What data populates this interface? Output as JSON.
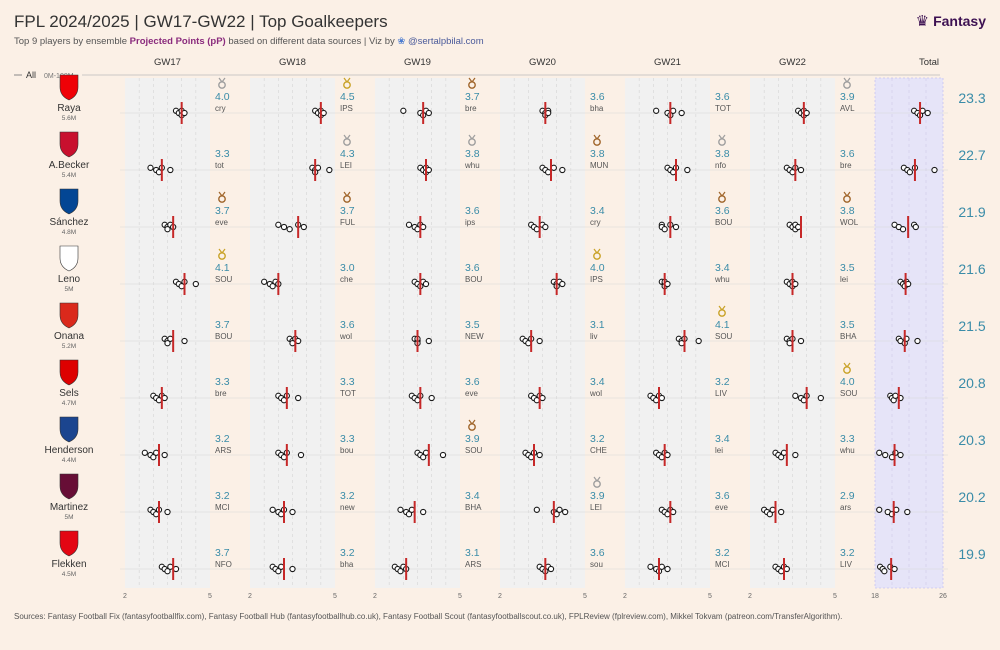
{
  "header": {
    "title": "FPL 2024/2025 | GW17-GW22 | Top Goalkeepers",
    "subtitle_pre": "Top 9 players by ensemble ",
    "subtitle_bold": "Projected Points (pP)",
    "subtitle_mid": " based on different data sources | Viz by ",
    "subtitle_handle": "@sertalpbilal.com",
    "logo_text": "Fantasy"
  },
  "filter": {
    "label": "All",
    "range": "0M-100M"
  },
  "footer": "Sources: Fantasy Football Fix (fantasyfootballfix.com), Fantasy Football Hub (fantasyfootballhub.co.uk), Fantasy Football Scout (fantasyfootballscout.co.uk), FPLReview (fplreview.com), Mikkel Tokvam (patreon.com/TransferAlgorithm).",
  "colors": {
    "background": "#fbf0e6",
    "panel": "#f1f1f1",
    "total_panel": "#e6e4f8",
    "mean_line": "#c62828",
    "value_text": "#3a8ca8",
    "gold": "#c9a227",
    "silver": "#9e9e9e",
    "bronze": "#a0652a"
  },
  "chart_data": {
    "type": "strip",
    "gameweeks": [
      "GW17",
      "GW18",
      "GW19",
      "GW20",
      "GW21",
      "GW22"
    ],
    "total_label": "Total",
    "axis_gw": {
      "min": 2,
      "max": 5,
      "tick_labels": [
        "2",
        "5"
      ]
    },
    "axis_total": {
      "min": 18,
      "max": 26,
      "tick_labels": [
        "18",
        "26"
      ]
    },
    "players": [
      {
        "name": "Raya",
        "price": "5.6M",
        "total": 23.3,
        "total_sources": [
          22.6,
          23.0,
          23.3,
          23.6,
          24.2
        ],
        "gws": [
          {
            "value": 4.0,
            "opp": "cry",
            "medal": "silver",
            "sources": [
              3.8,
              3.9,
              4.0,
              4.0,
              4.1
            ]
          },
          {
            "value": 4.5,
            "opp": "IPS",
            "medal": "gold",
            "sources": [
              4.3,
              4.4,
              4.5,
              4.5,
              4.6
            ]
          },
          {
            "value": 3.7,
            "opp": "bre",
            "medal": "bronze",
            "sources": [
              3.0,
              3.6,
              3.7,
              3.8,
              3.9
            ]
          },
          {
            "value": 3.6,
            "opp": "bha",
            "medal": "",
            "sources": [
              3.5,
              3.6,
              3.6,
              3.7,
              3.7
            ]
          },
          {
            "value": 3.6,
            "opp": "TOT",
            "medal": "",
            "sources": [
              3.1,
              3.5,
              3.6,
              3.7,
              4.0
            ]
          },
          {
            "value": 3.9,
            "opp": "AVL",
            "medal": "silver",
            "sources": [
              3.7,
              3.8,
              3.9,
              3.9,
              4.0
            ]
          }
        ]
      },
      {
        "name": "A.Becker",
        "price": "5.4M",
        "total": 22.7,
        "total_sources": [
          21.4,
          21.8,
          22.1,
          22.7,
          25.0
        ],
        "gws": [
          {
            "value": 3.3,
            "opp": "tot",
            "medal": "",
            "sources": [
              2.9,
              3.1,
              3.2,
              3.3,
              3.6
            ]
          },
          {
            "value": 4.3,
            "opp": "LEI",
            "medal": "silver",
            "sources": [
              4.2,
              4.3,
              4.3,
              4.4,
              4.8
            ]
          },
          {
            "value": 3.8,
            "opp": "whu",
            "medal": "silver",
            "sources": [
              3.6,
              3.7,
              3.8,
              3.8,
              3.9
            ]
          },
          {
            "value": 3.8,
            "opp": "MUN",
            "medal": "bronze",
            "sources": [
              3.5,
              3.6,
              3.7,
              3.9,
              4.2
            ]
          },
          {
            "value": 3.8,
            "opp": "nfo",
            "medal": "silver",
            "sources": [
              3.5,
              3.6,
              3.7,
              3.8,
              4.2
            ]
          },
          {
            "value": 3.6,
            "opp": "bre",
            "medal": "",
            "sources": [
              3.3,
              3.4,
              3.5,
              3.6,
              3.8
            ]
          }
        ]
      },
      {
        "name": "Sánchez",
        "price": "4.8M",
        "total": 21.9,
        "total_sources": [
          20.3,
          20.8,
          21.3,
          22.6,
          22.8
        ],
        "gws": [
          {
            "value": 3.7,
            "opp": "eve",
            "medal": "bronze",
            "sources": [
              3.4,
              3.5,
              3.5,
              3.6,
              3.7
            ]
          },
          {
            "value": 3.7,
            "opp": "FUL",
            "medal": "bronze",
            "sources": [
              3.0,
              3.2,
              3.4,
              3.7,
              3.9
            ]
          },
          {
            "value": 3.6,
            "opp": "ips",
            "medal": "",
            "sources": [
              3.2,
              3.4,
              3.5,
              3.6,
              3.7
            ]
          },
          {
            "value": 3.4,
            "opp": "cry",
            "medal": "",
            "sources": [
              3.1,
              3.2,
              3.3,
              3.5,
              3.6
            ]
          },
          {
            "value": 3.6,
            "opp": "BOU",
            "medal": "bronze",
            "sources": [
              3.3,
              3.3,
              3.4,
              3.6,
              3.8
            ]
          },
          {
            "value": 3.8,
            "opp": "WOL",
            "medal": "bronze",
            "sources": [
              3.4,
              3.5,
              3.6,
              3.6,
              3.7
            ]
          }
        ]
      },
      {
        "name": "Leno",
        "price": "5M",
        "total": 21.6,
        "total_sources": [
          21.0,
          21.3,
          21.5,
          21.7,
          21.9
        ],
        "gws": [
          {
            "value": 4.1,
            "opp": "SOU",
            "medal": "gold",
            "sources": [
              3.8,
              3.9,
              4.0,
              4.1,
              4.5
            ]
          },
          {
            "value": 3.0,
            "opp": "che",
            "medal": "",
            "sources": [
              2.5,
              2.7,
              2.8,
              2.9,
              3.0
            ]
          },
          {
            "value": 3.6,
            "opp": "BOU",
            "medal": "",
            "sources": [
              3.4,
              3.5,
              3.6,
              3.7,
              3.8
            ]
          },
          {
            "value": 4.0,
            "opp": "IPS",
            "medal": "gold",
            "sources": [
              3.9,
              4.0,
              4.0,
              4.1,
              4.2
            ]
          },
          {
            "value": 3.4,
            "opp": "whu",
            "medal": "",
            "sources": [
              3.3,
              3.4,
              3.4,
              3.4,
              3.5
            ]
          },
          {
            "value": 3.5,
            "opp": "lei",
            "medal": "",
            "sources": [
              3.3,
              3.4,
              3.5,
              3.5,
              3.6
            ]
          }
        ]
      },
      {
        "name": "Onana",
        "price": "5.2M",
        "total": 21.5,
        "total_sources": [
          20.8,
          21.0,
          21.5,
          21.7,
          23.0
        ],
        "gws": [
          {
            "value": 3.7,
            "opp": "BOU",
            "medal": "",
            "sources": [
              3.4,
              3.5,
              3.5,
              3.6,
              4.1
            ]
          },
          {
            "value": 3.6,
            "opp": "wol",
            "medal": "",
            "sources": [
              3.4,
              3.5,
              3.5,
              3.6,
              3.7
            ]
          },
          {
            "value": 3.5,
            "opp": "NEW",
            "medal": "",
            "sources": [
              3.4,
              3.5,
              3.5,
              3.5,
              3.9
            ]
          },
          {
            "value": 3.1,
            "opp": "liv",
            "medal": "",
            "sources": [
              2.8,
              2.9,
              3.0,
              3.1,
              3.4
            ]
          },
          {
            "value": 4.1,
            "opp": "SOU",
            "medal": "gold",
            "sources": [
              3.9,
              4.0,
              4.0,
              4.1,
              4.6
            ]
          },
          {
            "value": 3.5,
            "opp": "BHA",
            "medal": "",
            "sources": [
              3.3,
              3.4,
              3.4,
              3.5,
              3.8
            ]
          }
        ]
      },
      {
        "name": "Sels",
        "price": "4.7M",
        "total": 20.8,
        "total_sources": [
          19.8,
          20.0,
          20.2,
          20.4,
          21.0
        ],
        "gws": [
          {
            "value": 3.3,
            "opp": "bre",
            "medal": "",
            "sources": [
              3.0,
              3.1,
              3.2,
              3.3,
              3.4
            ]
          },
          {
            "value": 3.3,
            "opp": "TOT",
            "medal": "",
            "sources": [
              3.0,
              3.1,
              3.2,
              3.3,
              3.7
            ]
          },
          {
            "value": 3.6,
            "opp": "eve",
            "medal": "",
            "sources": [
              3.3,
              3.4,
              3.5,
              3.6,
              4.0
            ]
          },
          {
            "value": 3.4,
            "opp": "wol",
            "medal": "",
            "sources": [
              3.1,
              3.2,
              3.3,
              3.4,
              3.5
            ]
          },
          {
            "value": 3.2,
            "opp": "LIV",
            "medal": "",
            "sources": [
              2.9,
              3.0,
              3.1,
              3.2,
              3.3
            ]
          },
          {
            "value": 4.0,
            "opp": "SOU",
            "medal": "gold",
            "sources": [
              3.6,
              3.8,
              3.9,
              4.0,
              4.5
            ]
          }
        ]
      },
      {
        "name": "Henderson",
        "price": "4.4M",
        "total": 20.3,
        "total_sources": [
          18.5,
          19.2,
          20.0,
          20.4,
          21.0
        ],
        "gws": [
          {
            "value": 3.2,
            "opp": "ARS",
            "medal": "",
            "sources": [
              2.7,
              2.9,
              3.0,
              3.1,
              3.4
            ]
          },
          {
            "value": 3.3,
            "opp": "bou",
            "medal": "",
            "sources": [
              3.0,
              3.1,
              3.2,
              3.3,
              3.8
            ]
          },
          {
            "value": 3.9,
            "opp": "SOU",
            "medal": "bronze",
            "sources": [
              3.5,
              3.6,
              3.7,
              3.8,
              4.4
            ]
          },
          {
            "value": 3.2,
            "opp": "CHE",
            "medal": "",
            "sources": [
              2.9,
              3.0,
              3.1,
              3.2,
              3.4
            ]
          },
          {
            "value": 3.4,
            "opp": "lei",
            "medal": "",
            "sources": [
              3.1,
              3.2,
              3.3,
              3.4,
              3.5
            ]
          },
          {
            "value": 3.3,
            "opp": "whu",
            "medal": "",
            "sources": [
              2.9,
              3.0,
              3.1,
              3.2,
              3.6
            ]
          }
        ]
      },
      {
        "name": "Martinez",
        "price": "5M",
        "total": 20.2,
        "total_sources": [
          18.5,
          19.5,
          20.0,
          20.5,
          21.8
        ],
        "gws": [
          {
            "value": 3.2,
            "opp": "MCI",
            "medal": "",
            "sources": [
              2.9,
              3.0,
              3.1,
              3.2,
              3.5
            ]
          },
          {
            "value": 3.2,
            "opp": "new",
            "medal": "",
            "sources": [
              2.8,
              3.0,
              3.1,
              3.2,
              3.5
            ]
          },
          {
            "value": 3.4,
            "opp": "BHA",
            "medal": "",
            "sources": [
              2.9,
              3.1,
              3.2,
              3.3,
              3.7
            ]
          },
          {
            "value": 3.9,
            "opp": "LEI",
            "medal": "silver",
            "sources": [
              3.3,
              3.9,
              4.0,
              4.1,
              4.3
            ]
          },
          {
            "value": 3.6,
            "opp": "eve",
            "medal": "",
            "sources": [
              3.3,
              3.4,
              3.5,
              3.6,
              3.7
            ]
          },
          {
            "value": 2.9,
            "opp": "ars",
            "medal": "",
            "sources": [
              2.5,
              2.6,
              2.7,
              2.8,
              3.1
            ]
          }
        ]
      },
      {
        "name": "Flekken",
        "price": "4.5M",
        "total": 19.9,
        "total_sources": [
          18.6,
          18.9,
          19.1,
          19.8,
          20.3
        ],
        "gws": [
          {
            "value": 3.7,
            "opp": "NFO",
            "medal": "",
            "sources": [
              3.3,
              3.4,
              3.5,
              3.6,
              3.8
            ]
          },
          {
            "value": 3.2,
            "opp": "bha",
            "medal": "",
            "sources": [
              2.8,
              2.9,
              3.0,
              3.1,
              3.5
            ]
          },
          {
            "value": 3.1,
            "opp": "ARS",
            "medal": "",
            "sources": [
              2.7,
              2.8,
              2.9,
              3.0,
              3.1
            ]
          },
          {
            "value": 3.6,
            "opp": "sou",
            "medal": "",
            "sources": [
              3.4,
              3.5,
              3.6,
              3.7,
              3.8
            ]
          },
          {
            "value": 3.2,
            "opp": "MCI",
            "medal": "",
            "sources": [
              2.9,
              3.1,
              3.2,
              3.3,
              3.5
            ]
          },
          {
            "value": 3.2,
            "opp": "LIV",
            "medal": "",
            "sources": [
              2.9,
              3.0,
              3.1,
              3.2,
              3.3
            ]
          }
        ]
      }
    ]
  }
}
